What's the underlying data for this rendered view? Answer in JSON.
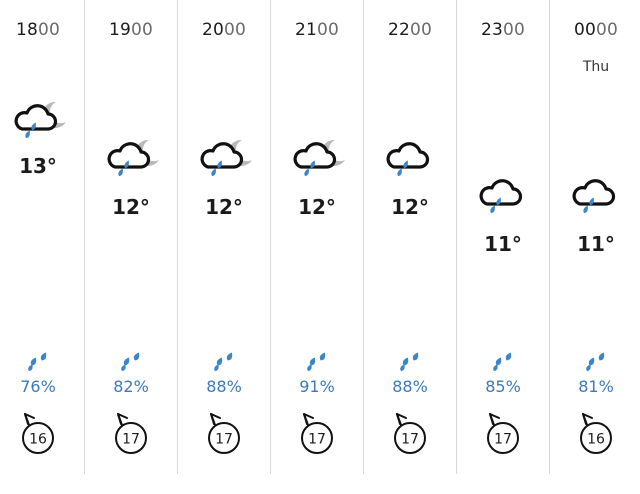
{
  "hours": [
    {
      "hh": "18",
      "mm": "00",
      "day": "",
      "temp": "13°",
      "precip": "76%",
      "wind": "16",
      "icon": "rain-cloud-moon-icon",
      "moon": true,
      "level": 0
    },
    {
      "hh": "19",
      "mm": "00",
      "day": "",
      "temp": "12°",
      "precip": "82%",
      "wind": "17",
      "icon": "rain-cloud-moon-icon",
      "moon": true,
      "level": 1
    },
    {
      "hh": "20",
      "mm": "00",
      "day": "",
      "temp": "12°",
      "precip": "88%",
      "wind": "17",
      "icon": "rain-cloud-moon-icon",
      "moon": true,
      "level": 1
    },
    {
      "hh": "21",
      "mm": "00",
      "day": "",
      "temp": "12°",
      "precip": "91%",
      "wind": "17",
      "icon": "rain-cloud-moon-icon",
      "moon": true,
      "level": 1
    },
    {
      "hh": "22",
      "mm": "00",
      "day": "",
      "temp": "12°",
      "precip": "88%",
      "wind": "17",
      "icon": "rain-cloud-icon",
      "moon": false,
      "level": 1
    },
    {
      "hh": "23",
      "mm": "00",
      "day": "",
      "temp": "11°",
      "precip": "85%",
      "wind": "17",
      "icon": "rain-cloud-icon",
      "moon": false,
      "level": 2
    },
    {
      "hh": "00",
      "mm": "00",
      "day": "Thu",
      "temp": "11°",
      "precip": "81%",
      "wind": "16",
      "icon": "rain-cloud-icon",
      "moon": false,
      "level": 2
    }
  ],
  "colors": {
    "accent": "#3d7ab8",
    "drop": "#3a86c8",
    "moon": "#b9b9b9",
    "divider": "#d8d8d8"
  }
}
